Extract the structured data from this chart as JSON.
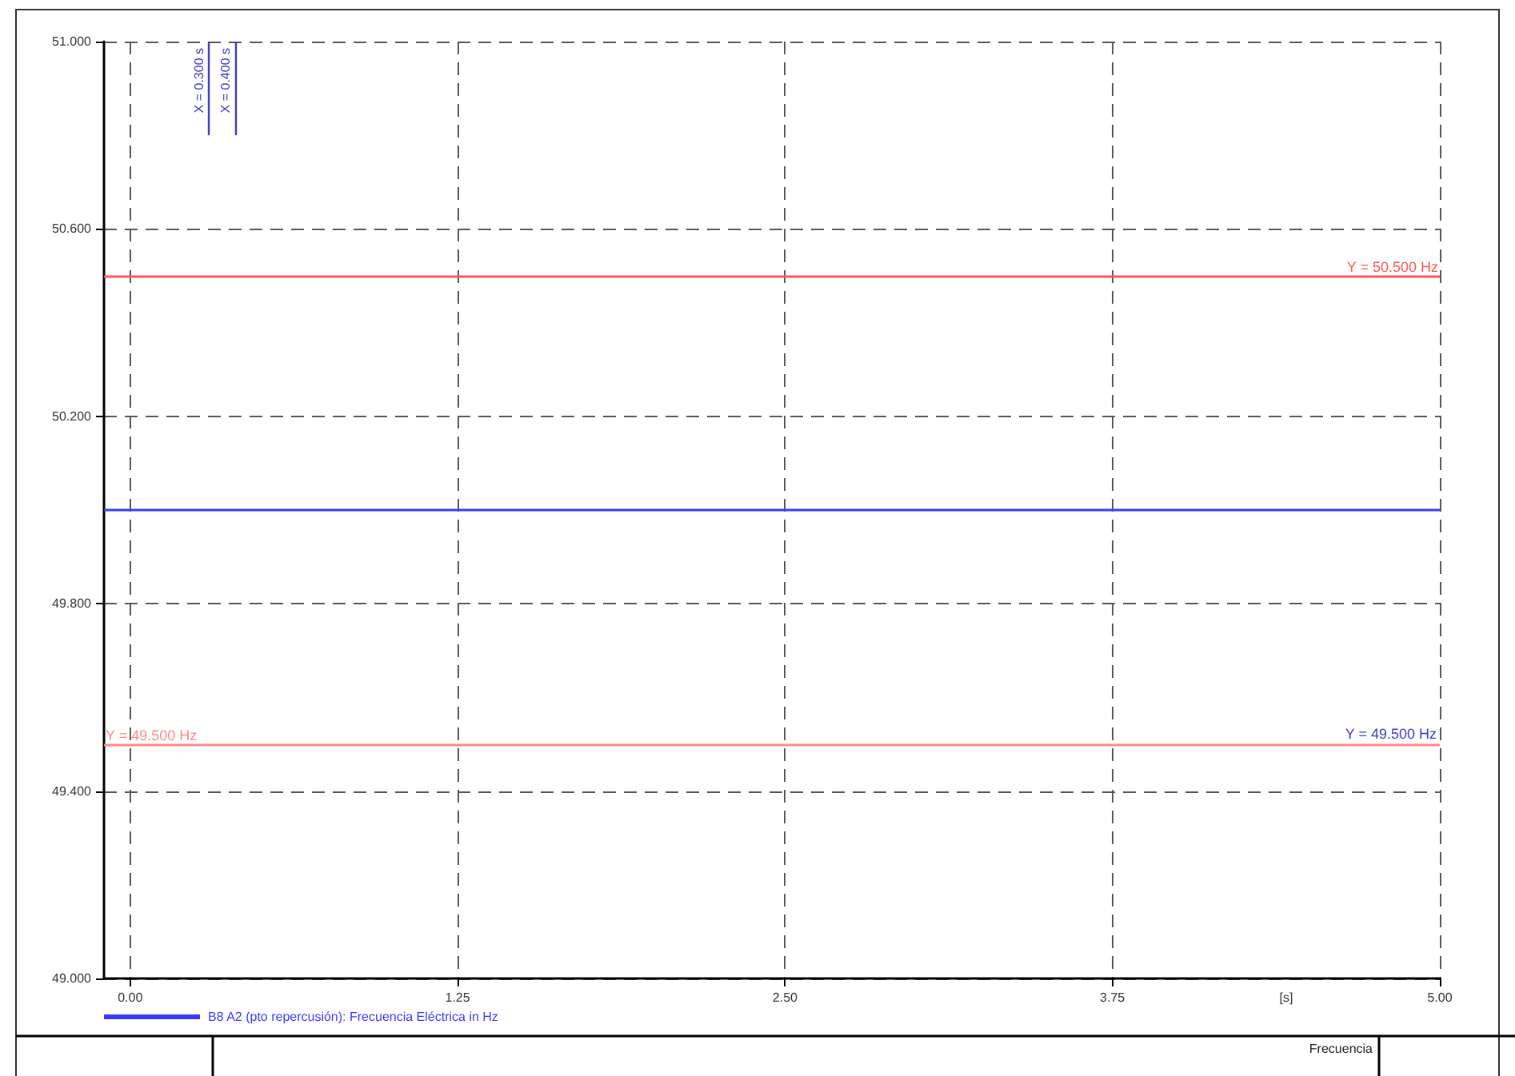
{
  "chart_data": {
    "type": "line",
    "xlabel": "[s]",
    "x": [
      -0.1,
      5
    ],
    "series": [
      {
        "name": "B8 A2 (pto repercusión): Frecuencia Eléctrica in Hz",
        "color": "#3a3aff",
        "values": [
          50,
          50
        ]
      }
    ],
    "xlim": [
      -0.1,
      5
    ],
    "xticks": [
      {
        "value": 0,
        "label": "0.00"
      },
      {
        "value": 1.25,
        "label": "1.25"
      },
      {
        "value": 2.5,
        "label": "2.50"
      },
      {
        "value": 3.75,
        "label": "3.75"
      },
      {
        "value": 5,
        "label": "5.00"
      }
    ],
    "ylim": [
      49,
      51
    ],
    "yticks": [
      {
        "value": 49,
        "label": "49.000"
      },
      {
        "value": 49.4,
        "label": "49.400"
      },
      {
        "value": 49.8,
        "label": "49.800"
      },
      {
        "value": 50.2,
        "label": "50.200"
      },
      {
        "value": 50.6,
        "label": "50.600"
      },
      {
        "value": 51,
        "label": "51.000"
      }
    ],
    "ref_lines": [
      {
        "axis": "y",
        "value": 50.5,
        "label": "Y = 50.500 Hz",
        "color": "#ff5555"
      },
      {
        "axis": "y",
        "value": 49.5,
        "label": "Y = 49.500 Hz",
        "color": "#ff8888"
      },
      {
        "axis": "x",
        "value": 0.3,
        "label": "X = 0.300 s",
        "color": "#3a3acc"
      },
      {
        "axis": "x",
        "value": 0.4,
        "label": "X = 0.400 s",
        "color": "#3a3acc"
      }
    ],
    "annotations": [
      {
        "text": "Y = 49.500 Hz",
        "x": 5,
        "y": 49.5
      },
      "Frecuencia"
    ],
    "grid": true,
    "legend": "bottom left",
    "marker": "none",
    "line_style": "solid"
  }
}
